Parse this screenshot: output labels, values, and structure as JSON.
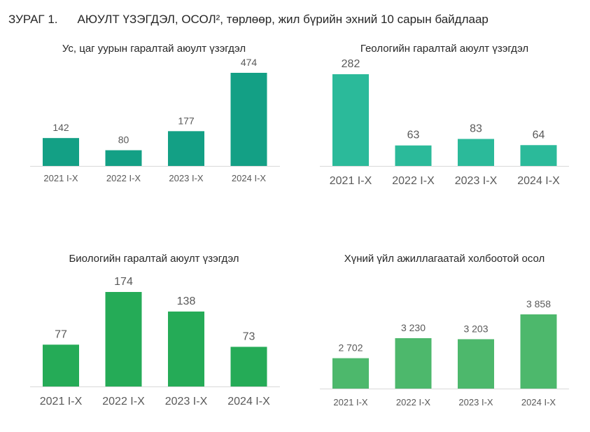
{
  "figure": {
    "number": "ЗУРАГ 1.",
    "title": "АЮУЛТ ҮЗЭГДЭЛ, ОСОЛ², төрлөөр, жил бүрийн эхний 10 сарын байдлаар"
  },
  "chart_data": [
    {
      "type": "bar",
      "title": "Ус, цаг уурын гаралтай аюулт үзэгдэл",
      "categories": [
        "2021 I-X",
        "2022 I-X",
        "2023 I-X",
        "2024 I-X"
      ],
      "values": [
        142,
        80,
        177,
        474
      ],
      "value_labels": [
        "142",
        "80",
        "177",
        "474"
      ],
      "color": "#13A085",
      "ylim": [
        0,
        474
      ],
      "grid": false
    },
    {
      "type": "bar",
      "title": "Геологийн гаралтай аюулт үзэгдэл",
      "categories": [
        "2021 I-X",
        "2022 I-X",
        "2023 I-X",
        "2024 I-X"
      ],
      "values": [
        282,
        63,
        83,
        64
      ],
      "value_labels": [
        "282",
        "63",
        "83",
        "64"
      ],
      "color": "#2BBA9A",
      "ylim": [
        0,
        282
      ],
      "grid": false
    },
    {
      "type": "bar",
      "title": "Биологийн гаралтай аюулт үзэгдэл",
      "categories": [
        "2021 I-X",
        "2022 I-X",
        "2023 I-X",
        "2024 I-X"
      ],
      "values": [
        77,
        174,
        138,
        73
      ],
      "value_labels": [
        "77",
        "174",
        "138",
        "73"
      ],
      "color": "#25AB57",
      "ylim": [
        0,
        174
      ],
      "grid": false
    },
    {
      "type": "bar",
      "title": "Хүний үйл ажиллагаатай холбоотой осол",
      "categories": [
        "2021 I-X",
        "2022 I-X",
        "2023 I-X",
        "2024 I-X"
      ],
      "values": [
        2702,
        3230,
        3203,
        3858
      ],
      "value_labels": [
        "2 702",
        "3 230",
        "3 203",
        "3 858"
      ],
      "color": "#4DB86C",
      "ylim": [
        0,
        3858
      ],
      "grid": false
    }
  ]
}
